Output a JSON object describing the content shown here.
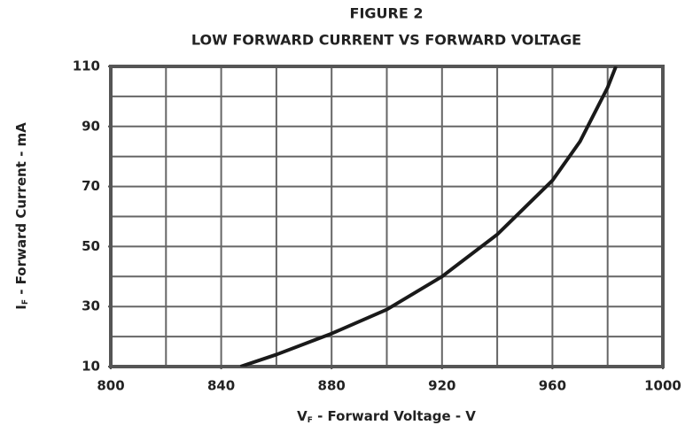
{
  "chart_data": {
    "type": "line",
    "title": [
      "FIGURE 2",
      "LOW FORWARD CURRENT VS FORWARD VOLTAGE"
    ],
    "x_label": {
      "main": "V",
      "sub": "F",
      "rest": " - Forward Voltage - V"
    },
    "y_label": {
      "main": "I",
      "sub": "F",
      "rest": " - Forward Current - mA"
    },
    "x": [
      847,
      860,
      880,
      900,
      920,
      940,
      960,
      970,
      980,
      983
    ],
    "values": [
      10,
      14,
      21,
      29,
      40,
      54,
      72,
      85,
      103,
      110
    ],
    "color": "#1a1a1a",
    "xlim": [
      800,
      1000
    ],
    "ylim": [
      10,
      110
    ],
    "xticks": [
      800,
      840,
      880,
      920,
      960,
      1000
    ],
    "yticks": [
      10,
      30,
      50,
      70,
      90,
      110
    ],
    "xgrid": [
      820,
      840,
      860,
      880,
      900,
      920,
      940,
      960,
      980
    ],
    "ygrid": [
      20,
      30,
      40,
      50,
      60,
      70,
      80,
      90,
      100
    ],
    "grid": true
  }
}
